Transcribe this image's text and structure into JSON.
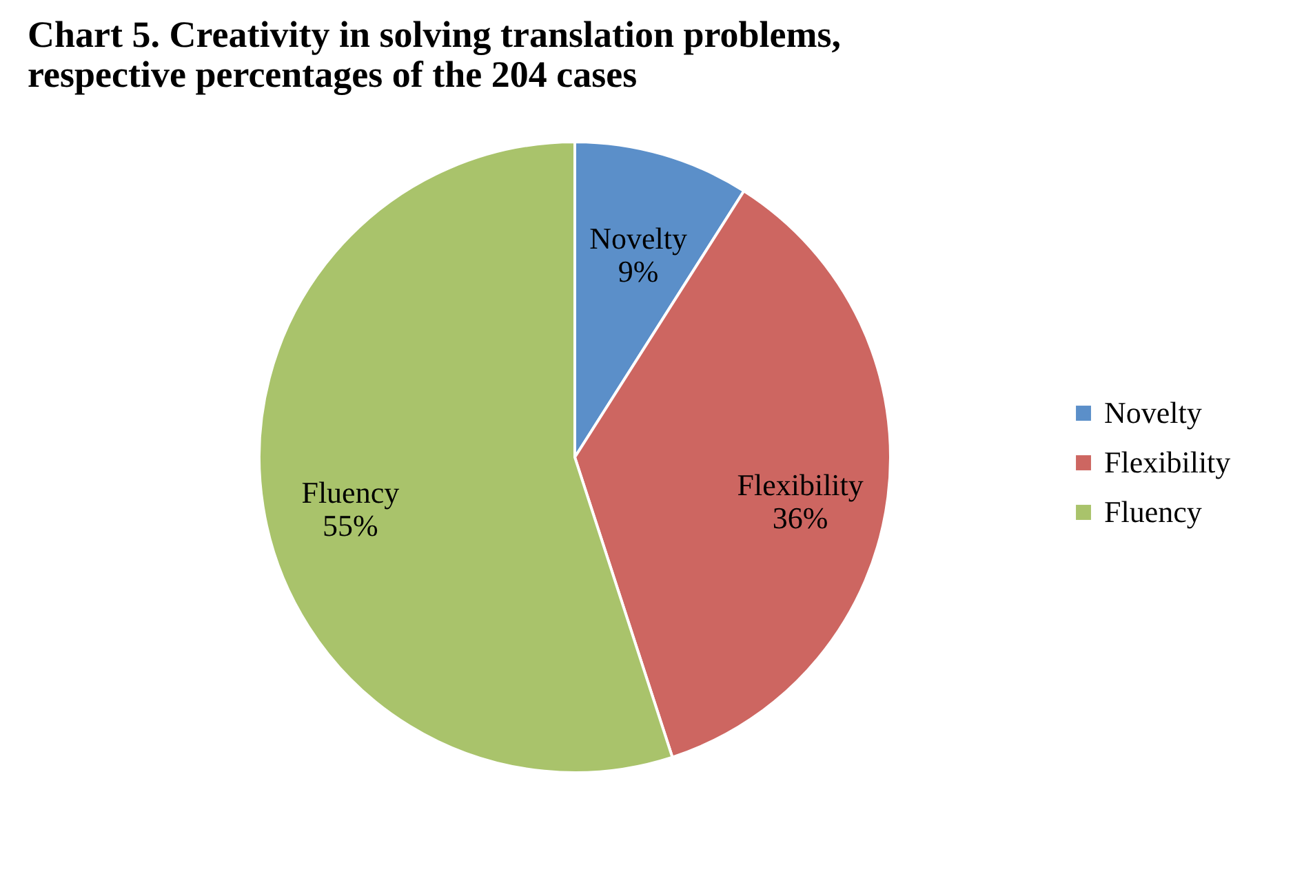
{
  "chart_data": {
    "type": "pie",
    "title": [
      "Chart 5. Creativity in solving translation problems,",
      "respective percentages of the 204 cases"
    ],
    "categories": [
      "Novelty",
      "Flexibility",
      "Fluency"
    ],
    "values": [
      9,
      36,
      55
    ],
    "value_labels": [
      "9%",
      "36%",
      "55%"
    ],
    "colors": [
      "#5b8fc9",
      "#cd6661",
      "#a9c36b"
    ],
    "legend": "right"
  }
}
